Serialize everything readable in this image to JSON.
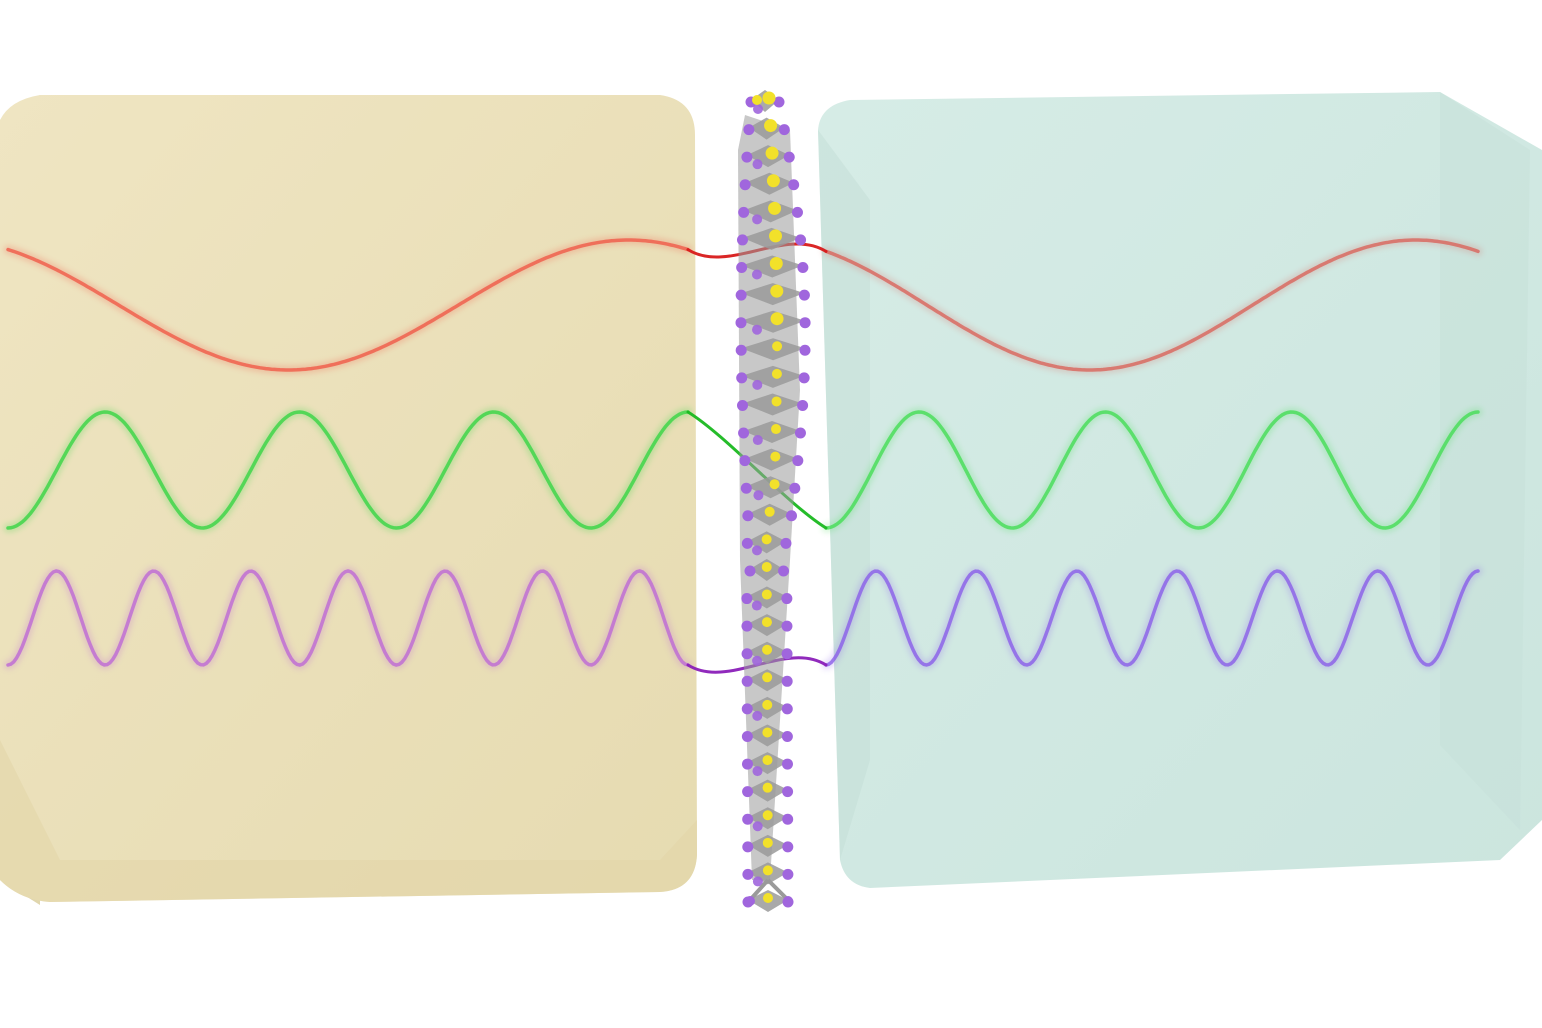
{
  "scene": {
    "colors": {
      "left_block": "#e9dfb7",
      "right_block": "#cfe8e1",
      "red_wave": "#f0604d",
      "green_wave": "#3fd64a",
      "violet_wave_left": "#c06fd4",
      "violet_wave_right": "#8a5ee8",
      "crystal_purple": "#a066dd",
      "crystal_gray": "#9a9a9a",
      "crystal_yellow": "#f2e12a"
    },
    "waves": [
      {
        "name": "red-wave",
        "left_cycles": 1.0,
        "right_cycles": 1.0,
        "relative_amplitude": 1.0
      },
      {
        "name": "green-wave",
        "left_cycles": 3.5,
        "right_cycles": 3.5,
        "relative_amplitude": 0.9
      },
      {
        "name": "violet-wave",
        "left_cycles": 7.0,
        "right_cycles": 6.5,
        "relative_amplitude": 0.75
      }
    ],
    "crystal": {
      "description_icon": "layered-crystal-icon",
      "units": 30
    }
  }
}
